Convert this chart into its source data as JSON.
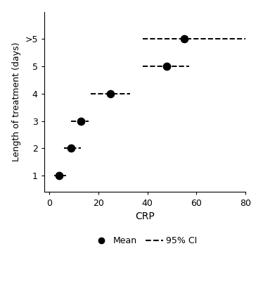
{
  "title": "",
  "xlabel": "CRP",
  "ylabel": "Length of treatment (days)",
  "xlim": [
    -2,
    80
  ],
  "yticks_values": [
    1,
    2,
    3,
    4,
    5,
    6
  ],
  "ytick_labels": [
    "1",
    "2",
    "3",
    "4",
    "5",
    ">5"
  ],
  "xticks": [
    0,
    20,
    40,
    60,
    80
  ],
  "xtick_labels": [
    "0",
    "20",
    "40",
    "60",
    "80"
  ],
  "points": [
    {
      "y": 1,
      "mean": 4,
      "ci_low": 2,
      "ci_high": 7
    },
    {
      "y": 2,
      "mean": 9,
      "ci_low": 6,
      "ci_high": 13
    },
    {
      "y": 3,
      "mean": 13,
      "ci_low": 9,
      "ci_high": 16
    },
    {
      "y": 4,
      "mean": 25,
      "ci_low": 17,
      "ci_high": 33
    },
    {
      "y": 5,
      "mean": 48,
      "ci_low": 38,
      "ci_high": 57
    },
    {
      "y": 6,
      "mean": 55,
      "ci_low": 38,
      "ci_high": 80
    }
  ],
  "dot_color": "#000000",
  "dot_size": 55,
  "ci_color": "#000000",
  "ci_linestyle": "--",
  "ci_linewidth": 1.4,
  "background_color": "#ffffff",
  "legend_dot_label": "Mean",
  "legend_line_label": "95% CI",
  "ylim": [
    0.4,
    7.0
  ],
  "figsize": [
    3.74,
    4.0
  ],
  "dpi": 100
}
